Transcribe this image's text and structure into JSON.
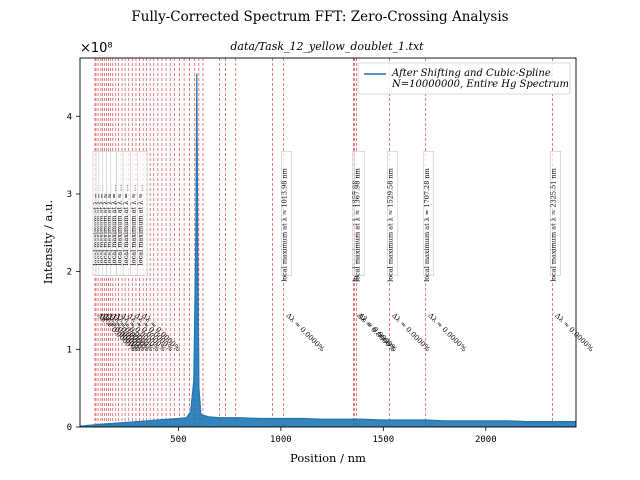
{
  "chart_data": {
    "type": "line",
    "suptitle": "Fully-Corrected Spectrum FFT: Zero-Crossing Analysis",
    "title": "data/Task_12_yellow_doublet_1.txt",
    "xlabel": "Position / nm",
    "ylabel": "Intensity / a.u.",
    "y_multiplier_label": "×10⁸",
    "xlim": [
      20,
      2440
    ],
    "ylim": [
      0,
      4.75
    ],
    "xticks": [
      500,
      1000,
      1500,
      2000
    ],
    "xtick_labels": [
      "500",
      "1000",
      "1500",
      "2000"
    ],
    "yticks": [
      0,
      1,
      2,
      3,
      4
    ],
    "ytick_labels": [
      "0",
      "1",
      "2",
      "3",
      "4"
    ],
    "grid": false,
    "legend_position": "top-right",
    "series": [
      {
        "name": "After Shifting and Cubic-Spline\nN=10000000, Entire Hg Spectrum",
        "color": "#1f77b4",
        "x": [
          20,
          60,
          100,
          150,
          200,
          250,
          300,
          350,
          400,
          450,
          500,
          540,
          560,
          575,
          585,
          590,
          595,
          600,
          610,
          650,
          700,
          800,
          900,
          1000,
          1100,
          1200,
          1300,
          1400,
          1500,
          1600,
          1700,
          1800,
          1900,
          2000,
          2100,
          2200,
          2300,
          2400,
          2440
        ],
        "values": [
          0.01,
          0.02,
          0.03,
          0.04,
          0.05,
          0.06,
          0.07,
          0.08,
          0.09,
          0.1,
          0.11,
          0.12,
          0.2,
          0.6,
          2.4,
          4.55,
          2.0,
          0.5,
          0.16,
          0.13,
          0.12,
          0.12,
          0.11,
          0.11,
          0.11,
          0.1,
          0.1,
          0.1,
          0.09,
          0.09,
          0.09,
          0.08,
          0.08,
          0.08,
          0.08,
          0.07,
          0.07,
          0.07,
          0.07
        ]
      }
    ],
    "vlines": {
      "color": "#d62728",
      "style": "dashed",
      "x": [
        93,
        98,
        108,
        122,
        130,
        140,
        150,
        160,
        170,
        180,
        195,
        208,
        225,
        240,
        258,
        275,
        293,
        310,
        328,
        345,
        362,
        380,
        400,
        420,
        440,
        460,
        480,
        505,
        528,
        555,
        580,
        600,
        620,
        700,
        730,
        780,
        960,
        1014,
        1355,
        1360,
        1368,
        1530,
        1707,
        2326
      ]
    },
    "annotations": {
      "dense_cluster": {
        "x": [
          93,
          108,
          122,
          140,
          160,
          180,
          208,
          240,
          275,
          310
        ],
        "peak_label": "local maximum at λ ≈ …",
        "delta_label": "Δλ ≈ 0.0000%"
      },
      "labels": [
        {
          "x": 1014,
          "peak_label": "local maximum at λ ≈ 1013.98 nm",
          "delta_label": "Δλ ≈ 0.0000%"
        },
        {
          "x": 1360,
          "peak_label": "local maximum at λ ≈ 1357.98 nm",
          "delta_label": "Δλ ≈ 0.0000%"
        },
        {
          "x": 1368,
          "peak_label": "local maximum at λ ≈ 1367.98 nm",
          "delta_label": "Δλ ≈ 0.0000%"
        },
        {
          "x": 1530,
          "peak_label": "local maximum at λ ≈ 1529.58 nm",
          "delta_label": "Δλ ≈ 0.0000%"
        },
        {
          "x": 1707,
          "peak_label": "local maximum at λ ≈ 1707.28 nm",
          "delta_label": "Δλ ≈ 0.0000%"
        },
        {
          "x": 2326,
          "peak_label": "local maximum at λ ≈ 2325.51 nm",
          "delta_label": "Δλ ≈ 0.0000%"
        }
      ]
    }
  }
}
